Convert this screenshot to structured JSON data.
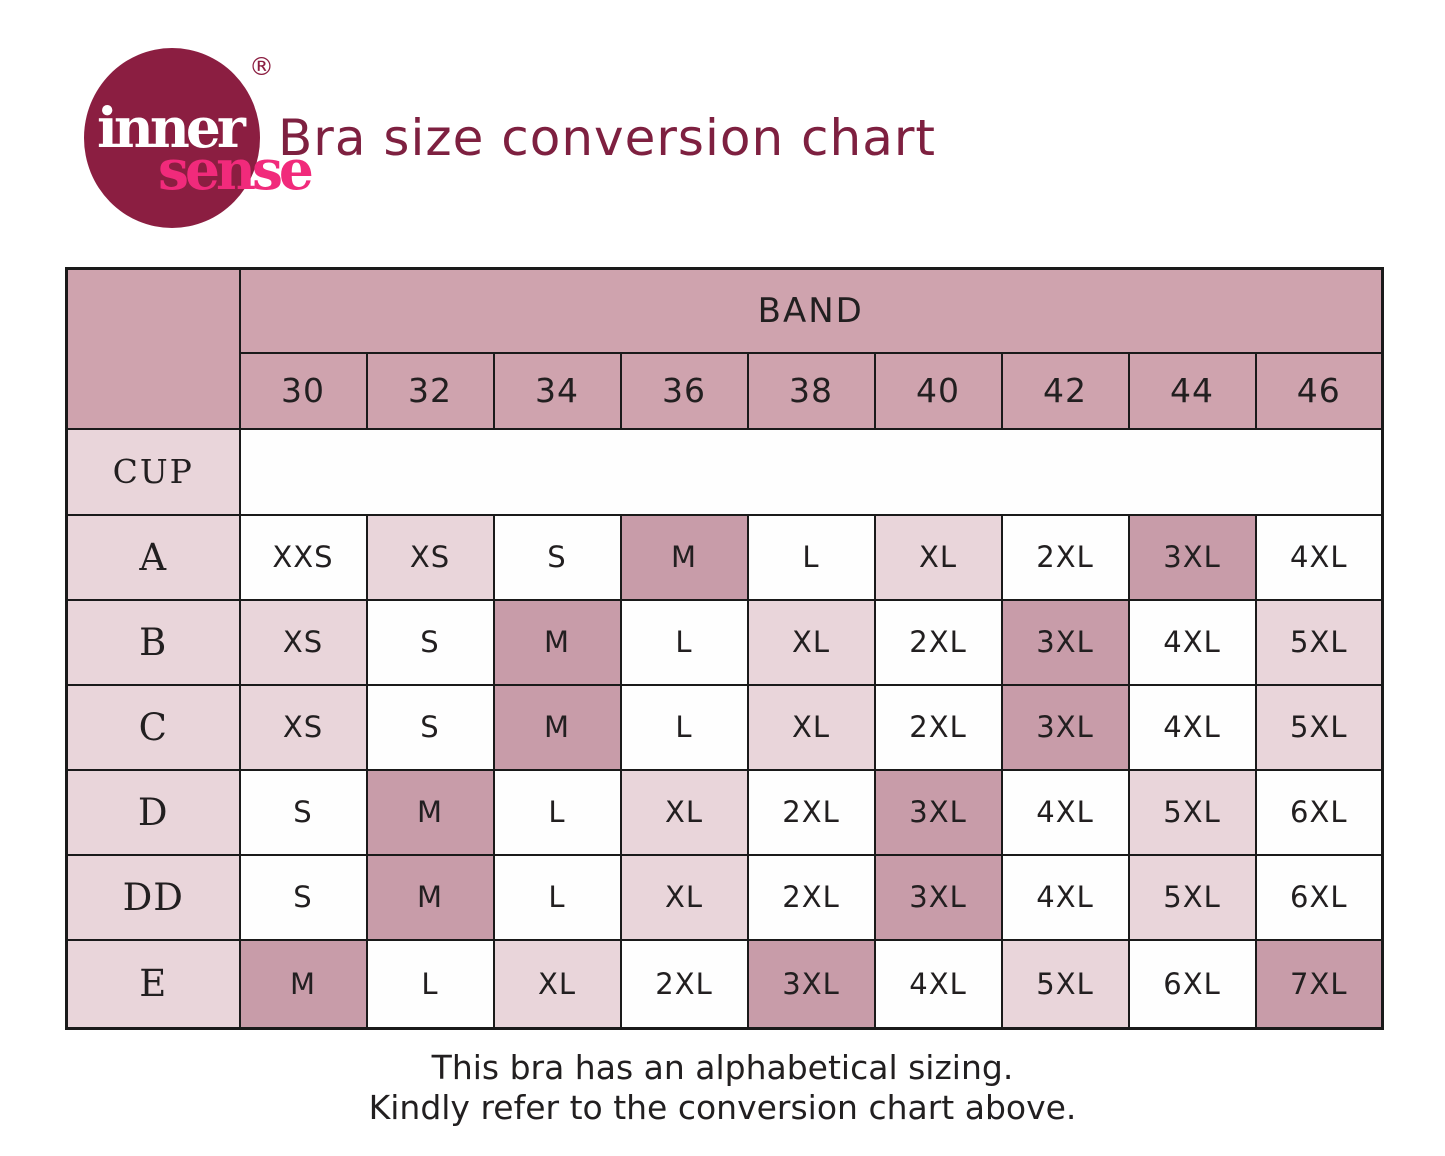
{
  "logo": {
    "brand_top": "inner",
    "brand_bottom": "sense",
    "registered_mark": "®"
  },
  "header": {
    "title": "Bra size conversion chart"
  },
  "chart_data": {
    "type": "table",
    "title": "Bra size conversion chart",
    "band_header": "BAND",
    "cup_header": "CUP",
    "band_sizes": [
      "30",
      "32",
      "34",
      "36",
      "38",
      "40",
      "42",
      "44",
      "46"
    ],
    "rows": [
      {
        "cup": "A",
        "sizes": [
          "XXS",
          "XS",
          "S",
          "M",
          "L",
          "XL",
          "2XL",
          "3XL",
          "4XL"
        ],
        "shades": [
          "white",
          "light",
          "white",
          "dark",
          "white",
          "light",
          "white",
          "dark",
          "white"
        ]
      },
      {
        "cup": "B",
        "sizes": [
          "XS",
          "S",
          "M",
          "L",
          "XL",
          "2XL",
          "3XL",
          "4XL",
          "5XL"
        ],
        "shades": [
          "light",
          "white",
          "dark",
          "white",
          "light",
          "white",
          "dark",
          "white",
          "light"
        ]
      },
      {
        "cup": "C",
        "sizes": [
          "XS",
          "S",
          "M",
          "L",
          "XL",
          "2XL",
          "3XL",
          "4XL",
          "5XL"
        ],
        "shades": [
          "light",
          "white",
          "dark",
          "white",
          "light",
          "white",
          "dark",
          "white",
          "light"
        ]
      },
      {
        "cup": "D",
        "sizes": [
          "S",
          "M",
          "L",
          "XL",
          "2XL",
          "3XL",
          "4XL",
          "5XL",
          "6XL"
        ],
        "shades": [
          "white",
          "dark",
          "white",
          "light",
          "white",
          "dark",
          "white",
          "light",
          "white"
        ]
      },
      {
        "cup": "DD",
        "sizes": [
          "S",
          "M",
          "L",
          "XL",
          "2XL",
          "3XL",
          "4XL",
          "5XL",
          "6XL"
        ],
        "shades": [
          "white",
          "dark",
          "white",
          "light",
          "white",
          "dark",
          "white",
          "light",
          "white"
        ]
      },
      {
        "cup": "E",
        "sizes": [
          "M",
          "L",
          "XL",
          "2XL",
          "3XL",
          "4XL",
          "5XL",
          "6XL",
          "7XL"
        ],
        "shades": [
          "dark",
          "white",
          "light",
          "white",
          "dark",
          "white",
          "light",
          "white",
          "dark"
        ]
      }
    ],
    "legend_position": "none",
    "grid": true
  },
  "footer": {
    "line1": "This bra has an alphabetical sizing.",
    "line2": "Kindly refer to the conversion chart above."
  },
  "theme": {
    "title_color": "#7e2040",
    "logo_circle": "#8b1e41",
    "logo_top": "#ffffff",
    "logo_bottom": "#f12a7b",
    "cell_header": "#cfa3ae",
    "cell_dark": "#c89ca9",
    "cell_light": "#e9d5da",
    "cell_white": "#fefefe",
    "border": "#1a1a1a",
    "text": "#221f20"
  }
}
